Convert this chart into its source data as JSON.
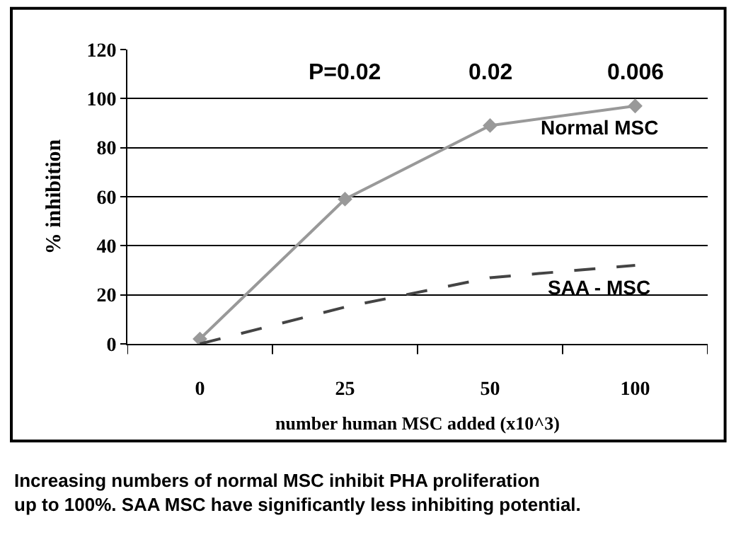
{
  "chart_data": {
    "type": "line",
    "xlabel": "number human MSC added (x10^3)",
    "ylabel": "% inhibition",
    "categories": [
      "0",
      "25",
      "50",
      "100"
    ],
    "series": [
      {
        "name": "Normal MSC",
        "color": "#999999",
        "values": [
          2,
          59,
          89,
          97
        ],
        "marker": "diamond",
        "line_style": "solid"
      },
      {
        "name": "SAA - MSC",
        "color": "#444444",
        "values": [
          0,
          15,
          27,
          32
        ],
        "marker": "none",
        "line_style": "dashed"
      }
    ],
    "ylim": [
      0,
      120
    ],
    "yticks": [
      0,
      20,
      40,
      60,
      80,
      100,
      120
    ],
    "grid": "y",
    "legend": false,
    "annotations": [
      "P=0.02",
      "0.02",
      "0.006",
      "Increasing numbers of normal MSC inhibit PHA proliferation\nup to 100%. SAA MSC have significantly less inhibiting potential."
    ]
  }
}
